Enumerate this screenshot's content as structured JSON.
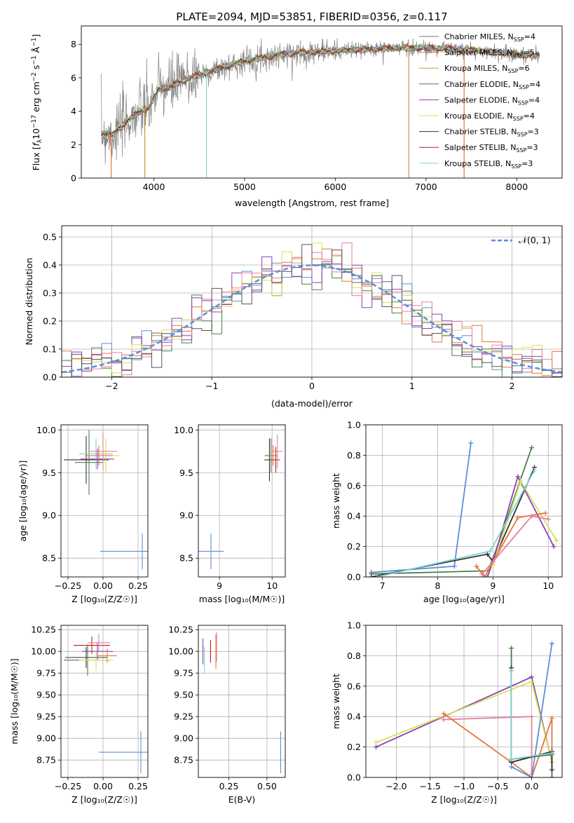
{
  "chart_data": [
    {
      "id": "spectrum",
      "type": "line",
      "title": "PLATE=2094, MJD=53851, FIBERID=0356, z=0.117",
      "xlabel": "wavelength [Angstrom, rest frame]",
      "ylabel_parts": {
        "pre": "Flux [",
        "sym": "f",
        "sub": "λ",
        "mid": "10",
        "sup1": "−17",
        "post": " erg cm",
        "sup2": "−2",
        "s": " s",
        "sup3": "−1",
        "a": " Å",
        "sup4": "−1",
        "end": "]"
      },
      "xlim": [
        3200,
        8500
      ],
      "ylim": [
        0,
        9.1
      ],
      "xticks": [
        4000,
        5000,
        6000,
        7000,
        8000
      ],
      "yticks": [
        0,
        2,
        4,
        6,
        8
      ],
      "legend": "upper right",
      "grid": false,
      "continuum": [
        [
          3420,
          2.7
        ],
        [
          3550,
          2.6
        ],
        [
          3700,
          3.4
        ],
        [
          3850,
          4.0
        ],
        [
          3950,
          4.2
        ],
        [
          4050,
          5.3
        ],
        [
          4200,
          5.5
        ],
        [
          4400,
          6.0
        ],
        [
          4700,
          6.5
        ],
        [
          5000,
          7.0
        ],
        [
          5300,
          7.3
        ],
        [
          5600,
          7.5
        ],
        [
          6000,
          7.6
        ],
        [
          6400,
          7.7
        ],
        [
          6800,
          7.8
        ],
        [
          7200,
          7.75
        ],
        [
          7600,
          7.6
        ],
        [
          8000,
          7.4
        ],
        [
          8250,
          7.3
        ]
      ],
      "series": [
        {
          "label": "Chabrier MILES, N",
          "sub": "SSP",
          "eq": "=4",
          "color": "#777777"
        },
        {
          "label": "Salpeter MILES, N",
          "sub": "SSP",
          "eq": "=5",
          "color": "#e8743b"
        },
        {
          "label": "Kroupa MILES, N",
          "sub": "SSP",
          "eq": "=6",
          "color": "#c69c3a"
        },
        {
          "label": "Chabrier ELODIE, N",
          "sub": "SSP",
          "eq": "=4",
          "color": "#4e7d4b"
        },
        {
          "label": "Salpeter ELODIE, N",
          "sub": "SSP",
          "eq": "=4",
          "color": "#8e3fb3"
        },
        {
          "label": "Kroupa ELODIE, N",
          "sub": "SSP",
          "eq": "=4",
          "color": "#d4e157"
        },
        {
          "label": "Chabrier STELIB, N",
          "sub": "SSP",
          "eq": "=3",
          "color": "#333333"
        },
        {
          "label": "Salpeter STELIB, N",
          "sub": "SSP",
          "eq": "=3",
          "color": "#b22222"
        },
        {
          "label": "Kroupa STELIB, N",
          "sub": "SSP",
          "eq": "=3",
          "color": "#7fd3d6"
        }
      ]
    },
    {
      "id": "residuals",
      "type": "histogram",
      "xlabel": "(data-model)/error",
      "ylabel": "Normed distribution",
      "xlim": [
        -2.5,
        2.5
      ],
      "ylim": [
        0,
        0.54
      ],
      "xticks": [
        -2,
        -1,
        0,
        1,
        2
      ],
      "yticks": [
        0.0,
        0.1,
        0.2,
        0.3,
        0.4,
        0.5
      ],
      "grid": true,
      "legend": "upper right",
      "curve_label": "𝒩(0, 1)",
      "curve_color": "#5b8fd9",
      "hist_colors": [
        "#5b8fd9",
        "#e8743b",
        "#4e7d4b",
        "#8e3fb3",
        "#d4e157",
        "#e77fa1",
        "#555555"
      ]
    },
    {
      "id": "age-vs-Z",
      "type": "errorbar",
      "xlabel": "Z [log₁₀(Z/Z☉)]",
      "ylabel": "age  [log₁₀(age/yr)]",
      "xlim": [
        -0.3,
        0.32
      ],
      "ylim": [
        8.28,
        10.06
      ],
      "xticks": [
        -0.25,
        0.0,
        0.25
      ],
      "yticks": [
        8.5,
        9.0,
        9.5,
        10.0
      ],
      "grid": true,
      "points": [
        {
          "x": -0.12,
          "y": 9.65,
          "xerr": 0.16,
          "yerr": 0.28,
          "color": "#333333"
        },
        {
          "x": -0.1,
          "y": 9.62,
          "xerr": 0.1,
          "yerr": 0.38,
          "color": "#4e7d4b"
        },
        {
          "x": -0.05,
          "y": 9.72,
          "xerr": 0.12,
          "yerr": 0.18,
          "color": "#7fd3d6"
        },
        {
          "x": -0.04,
          "y": 9.66,
          "xerr": 0.12,
          "yerr": 0.12,
          "color": "#8e3fb3"
        },
        {
          "x": 0.02,
          "y": 9.7,
          "xerr": 0.1,
          "yerr": 0.2,
          "color": "#d4e157"
        },
        {
          "x": 0.0,
          "y": 9.75,
          "xerr": 0.1,
          "yerr": 0.22,
          "color": "#e77fa1"
        },
        {
          "x": -0.03,
          "y": 9.7,
          "xerr": 0.1,
          "yerr": 0.12,
          "color": "#e8743b"
        },
        {
          "x": 0.28,
          "y": 8.58,
          "xerr": 0.3,
          "yerr": 0.21,
          "color": "#5b8fd9"
        }
      ]
    },
    {
      "id": "age-vs-mass",
      "type": "errorbar",
      "xlabel": "mass [log₁₀(M/M☉)]",
      "ylabel": "",
      "xlim": [
        8.6,
        10.25
      ],
      "ylim": [
        8.28,
        10.06
      ],
      "xticks": [
        9,
        10
      ],
      "yticks": [
        8.5,
        9.0,
        9.5,
        10.0
      ],
      "grid": true,
      "points": [
        {
          "x": 8.84,
          "y": 8.58,
          "xerr": 0.24,
          "yerr": 0.21,
          "color": "#5b8fd9"
        },
        {
          "x": 9.95,
          "y": 9.65,
          "xerr": 0.1,
          "yerr": 0.25,
          "color": "#333333"
        },
        {
          "x": 9.98,
          "y": 9.7,
          "xerr": 0.12,
          "yerr": 0.2,
          "color": "#4e7d4b"
        },
        {
          "x": 10.07,
          "y": 9.65,
          "xerr": 0.08,
          "yerr": 0.15,
          "color": "#b22222"
        },
        {
          "x": 10.1,
          "y": 9.75,
          "xerr": 0.1,
          "yerr": 0.2,
          "color": "#e77fa1"
        },
        {
          "x": 10.02,
          "y": 9.7,
          "xerr": 0.08,
          "yerr": 0.12,
          "color": "#e8743b"
        }
      ]
    },
    {
      "id": "mass-weight-vs-age",
      "type": "line",
      "xlabel": "age  [log₁₀(age/yr)]",
      "ylabel": "mass weight",
      "xlim": [
        6.7,
        10.25
      ],
      "ylim": [
        0,
        1
      ],
      "xticks": [
        7,
        8,
        9,
        10
      ],
      "yticks": [
        0.0,
        0.2,
        0.4,
        0.6,
        0.8,
        1.0
      ],
      "grid": true,
      "series": [
        {
          "color": "#5b8fd9",
          "points": [
            [
              6.8,
              0.03
            ],
            [
              8.3,
              0.07
            ],
            [
              8.6,
              0.88
            ]
          ]
        },
        {
          "color": "#4e7d4b",
          "points": [
            [
              6.8,
              0.02
            ],
            [
              8.9,
              0.04
            ],
            [
              9.0,
              0.12
            ],
            [
              9.7,
              0.85
            ]
          ]
        },
        {
          "color": "#333333",
          "points": [
            [
              6.8,
              0.0
            ],
            [
              8.9,
              0.15
            ],
            [
              9.0,
              0.1
            ],
            [
              9.75,
              0.72
            ]
          ]
        },
        {
          "color": "#8e3fb3",
          "points": [
            [
              8.9,
              0.0
            ],
            [
              9.0,
              0.1
            ],
            [
              9.45,
              0.66
            ],
            [
              10.1,
              0.2
            ]
          ]
        },
        {
          "color": "#d4e157",
          "points": [
            [
              8.8,
              0.02
            ],
            [
              9.0,
              0.08
            ],
            [
              9.5,
              0.63
            ],
            [
              10.15,
              0.24
            ]
          ]
        },
        {
          "color": "#e8743b",
          "points": [
            [
              8.7,
              0.07
            ],
            [
              8.85,
              0.0
            ],
            [
              9.45,
              0.39
            ],
            [
              9.95,
              0.42
            ]
          ]
        },
        {
          "color": "#e77fa1",
          "points": [
            [
              8.8,
              0.02
            ],
            [
              9.0,
              0.1
            ],
            [
              9.7,
              0.4
            ],
            [
              10.0,
              0.38
            ]
          ]
        },
        {
          "color": "#7fd3d6",
          "points": [
            [
              6.9,
              0.0
            ],
            [
              8.95,
              0.17
            ],
            [
              9.75,
              0.7
            ]
          ]
        }
      ]
    },
    {
      "id": "mass-vs-Z",
      "type": "errorbar",
      "xlabel": "Z [log₁₀(Z/Z☉)]",
      "ylabel": "mass [log₁₀(M/M☉)]",
      "xlim": [
        -0.3,
        0.32
      ],
      "ylim": [
        8.55,
        10.3
      ],
      "xticks": [
        -0.25,
        0.0,
        0.25
      ],
      "yticks": [
        8.75,
        9.0,
        9.25,
        9.5,
        9.75,
        10.0,
        10.25
      ],
      "grid": true,
      "points": [
        {
          "x": -0.12,
          "y": 9.93,
          "xerr": 0.15,
          "yerr": 0.12,
          "color": "#333333"
        },
        {
          "x": -0.11,
          "y": 9.9,
          "xerr": 0.17,
          "yerr": 0.18,
          "color": "#4e7d4b"
        },
        {
          "x": -0.08,
          "y": 10.07,
          "xerr": 0.13,
          "yerr": 0.1,
          "color": "#b22222"
        },
        {
          "x": -0.04,
          "y": 10.0,
          "xerr": 0.11,
          "yerr": 0.1,
          "color": "#8e3fb3"
        },
        {
          "x": -0.05,
          "y": 9.9,
          "xerr": 0.12,
          "yerr": 0.12,
          "color": "#d4e157"
        },
        {
          "x": 0.03,
          "y": 9.95,
          "xerr": 0.07,
          "yerr": 0.08,
          "color": "#e8743b"
        },
        {
          "x": -0.03,
          "y": 10.1,
          "xerr": 0.08,
          "yerr": 0.1,
          "color": "#e77fa1"
        },
        {
          "x": 0.27,
          "y": 8.84,
          "xerr": 0.3,
          "yerr": 0.24,
          "color": "#5b8fd9"
        }
      ]
    },
    {
      "id": "mass-vs-ebv",
      "type": "errorbar",
      "xlabel": "E(B-V)",
      "ylabel": "",
      "xlim": [
        0.05,
        0.62
      ],
      "ylim": [
        8.55,
        10.3
      ],
      "xticks": [
        0.25,
        0.5
      ],
      "yticks": [
        8.75,
        9.0,
        9.25,
        9.5,
        9.75,
        10.0,
        10.25
      ],
      "grid": true,
      "points": [
        {
          "x": 0.08,
          "y": 10.0,
          "xerr": 0.0,
          "yerr": 0.15,
          "color": "#8e3fb3"
        },
        {
          "x": 0.13,
          "y": 10.0,
          "xerr": 0.0,
          "yerr": 0.13,
          "color": "#b22222"
        },
        {
          "x": 0.17,
          "y": 10.05,
          "xerr": 0.0,
          "yerr": 0.17,
          "color": "#e77fa1"
        },
        {
          "x": 0.165,
          "y": 10.0,
          "xerr": 0.0,
          "yerr": 0.2,
          "color": "#e8743b"
        },
        {
          "x": 0.09,
          "y": 9.9,
          "xerr": 0.0,
          "yerr": 0.15,
          "color": "#7fd3d6"
        },
        {
          "x": 0.59,
          "y": 8.84,
          "xerr": 0.0,
          "yerr": 0.24,
          "color": "#5b8fd9"
        }
      ]
    },
    {
      "id": "mass-weight-vs-Z",
      "type": "line",
      "xlabel": "Z [log₁₀(Z/Z☉)]",
      "ylabel": "mass weight",
      "xlim": [
        -2.45,
        0.45
      ],
      "ylim": [
        0,
        1
      ],
      "xticks": [
        -2.0,
        -1.5,
        -1.0,
        -0.5,
        0.0
      ],
      "yticks": [
        0.0,
        0.2,
        0.4,
        0.6,
        0.8,
        1.0
      ],
      "grid": true,
      "series": [
        {
          "color": "#8e3fb3",
          "points": [
            [
              -2.3,
              0.2
            ],
            [
              0.0,
              0.66
            ],
            [
              0.3,
              0.1
            ]
          ]
        },
        {
          "color": "#d4e157",
          "points": [
            [
              -2.3,
              0.23
            ],
            [
              0.0,
              0.63
            ],
            [
              0.3,
              0.1
            ]
          ]
        },
        {
          "color": "#e77fa1",
          "points": [
            [
              -1.3,
              0.38
            ],
            [
              0.0,
              0.4
            ],
            [
              0.0,
              0.02
            ]
          ]
        },
        {
          "color": "#e8743b",
          "points": [
            [
              -1.3,
              0.42
            ],
            [
              -0.3,
              0.1
            ],
            [
              0.0,
              0.0
            ],
            [
              0.3,
              0.39
            ],
            [
              0.3,
              0.0
            ]
          ]
        },
        {
          "color": "#5b8fd9",
          "points": [
            [
              -0.3,
              0.07
            ],
            [
              0.0,
              0.0
            ],
            [
              0.3,
              0.88
            ]
          ]
        },
        {
          "color": "#4e7d4b",
          "points": [
            [
              -0.3,
              0.85
            ],
            [
              -0.3,
              0.12
            ],
            [
              0.3,
              0.15
            ],
            [
              0.3,
              0.0
            ]
          ]
        },
        {
          "color": "#333333",
          "points": [
            [
              -0.3,
              0.72
            ],
            [
              -0.3,
              0.1
            ],
            [
              0.3,
              0.17
            ],
            [
              0.3,
              0.05
            ]
          ]
        },
        {
          "color": "#7fd3d6",
          "points": [
            [
              -0.3,
              0.7
            ],
            [
              -0.3,
              0.12
            ],
            [
              0.3,
              0.16
            ]
          ]
        }
      ]
    }
  ]
}
